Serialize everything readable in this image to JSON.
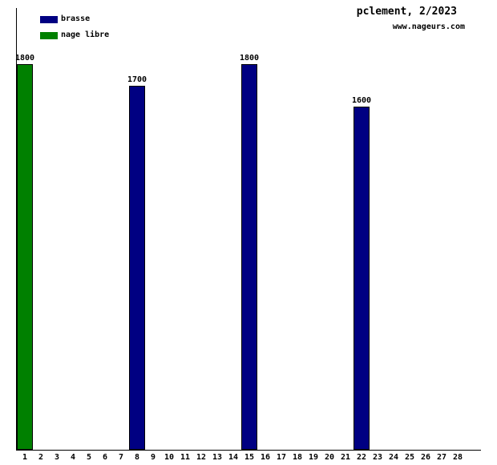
{
  "header": {
    "title": "pclement, 2/2023",
    "website": "www.nageurs.com"
  },
  "legend": {
    "items": [
      {
        "label": "brasse",
        "color": "#000082"
      },
      {
        "label": "nage libre",
        "color": "#008000"
      }
    ]
  },
  "chart_data": {
    "type": "bar",
    "title": "pclement, 2/2023",
    "xlabel": "",
    "ylabel": "",
    "categories": [
      1,
      2,
      3,
      4,
      5,
      6,
      7,
      8,
      9,
      10,
      11,
      12,
      13,
      14,
      15,
      16,
      17,
      18,
      19,
      20,
      21,
      22,
      23,
      24,
      25,
      26,
      27,
      28
    ],
    "series": [
      {
        "name": "brasse",
        "color": "#000082",
        "values": [
          null,
          null,
          null,
          null,
          null,
          null,
          null,
          1700,
          null,
          null,
          null,
          null,
          null,
          null,
          1800,
          null,
          null,
          null,
          null,
          null,
          null,
          1600,
          null,
          null,
          null,
          null,
          null,
          null
        ]
      },
      {
        "name": "nage libre",
        "color": "#008000",
        "values": [
          1800,
          null,
          null,
          null,
          null,
          null,
          null,
          null,
          null,
          null,
          null,
          null,
          null,
          null,
          null,
          null,
          null,
          null,
          null,
          null,
          null,
          null,
          null,
          null,
          null,
          null,
          null,
          null
        ]
      }
    ],
    "ylim": [
      0,
      2062
    ],
    "grid": false,
    "legend_position": "top-left",
    "bar_value_labels": true
  }
}
